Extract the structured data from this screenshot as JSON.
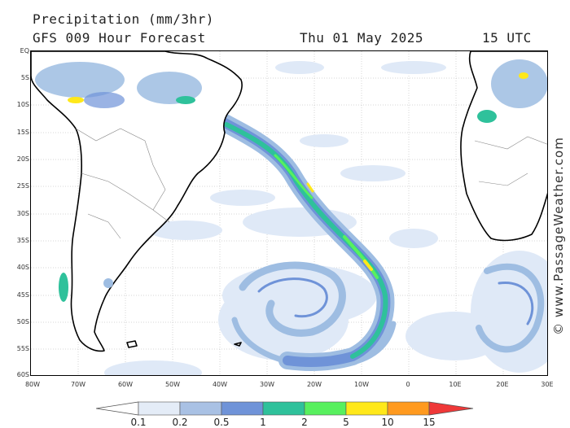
{
  "header": {
    "title": "Precipitation (mm/3hr)",
    "subtitle": "GFS 009 Hour Forecast",
    "date": "Thu 01 May 2025",
    "time": "15 UTC"
  },
  "credit": "© www.PassageWeather.com",
  "lat_labels": [
    "EQ",
    "5S",
    "10S",
    "15S",
    "20S",
    "25S",
    "30S",
    "35S",
    "40S",
    "45S",
    "50S",
    "55S",
    "60S"
  ],
  "lon_labels": [
    "80W",
    "70W",
    "60W",
    "50W",
    "40W",
    "30W",
    "20W",
    "10W",
    "0",
    "10E",
    "20E",
    "30E"
  ],
  "legend": {
    "labels": [
      "0.1",
      "0.2",
      "0.5",
      "1",
      "2",
      "5",
      "10",
      "15"
    ],
    "colors": [
      "#ffffff",
      "#e4ecf7",
      "#a9c1e4",
      "#6f93d8",
      "#2fc19b",
      "#58f05e",
      "#ffe81a",
      "#ff9a1f",
      "#ef3838"
    ]
  },
  "colors": {
    "land": "#ffffff",
    "ocean": "#ffffff",
    "light_rain": "#dfe9f7",
    "moderate": "#9ebde2",
    "heavy": "#6f93d8",
    "teal": "#2fc19b",
    "green": "#58f05e",
    "yellow": "#ffe81a"
  }
}
